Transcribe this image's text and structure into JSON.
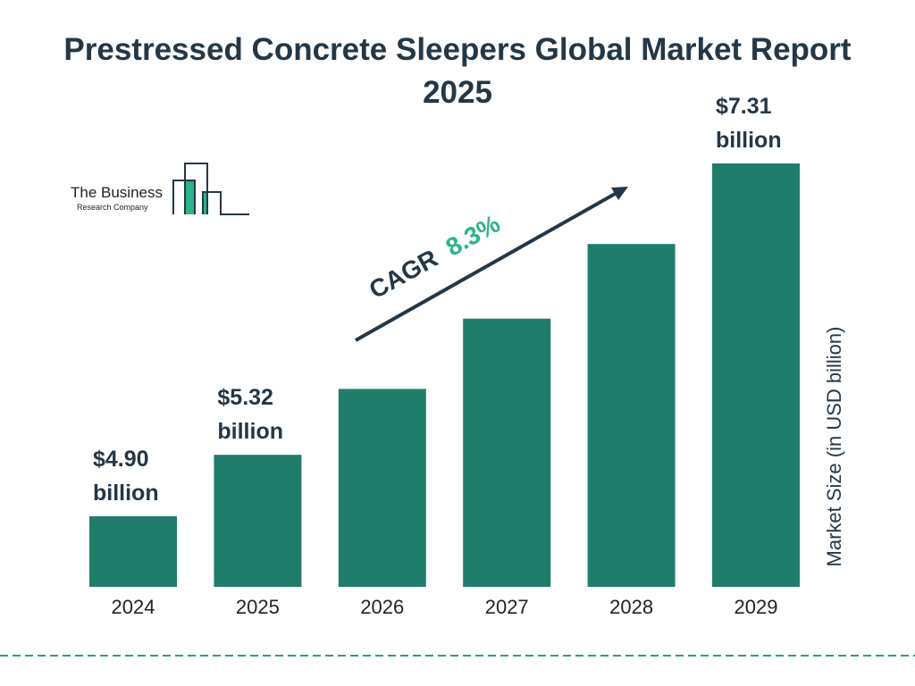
{
  "title": "Prestressed Concrete Sleepers Global Market Report 2025",
  "logo": {
    "line1": "The Business",
    "line2": "Research Company"
  },
  "colors": {
    "bar": "#217d6b",
    "text": "#243746",
    "accent": "#2bb389",
    "divider": "#2a9d8f"
  },
  "chart_data": {
    "type": "bar",
    "title": "Prestressed Concrete Sleepers Global Market Report 2025",
    "categories": [
      "2024",
      "2025",
      "2026",
      "2027",
      "2028",
      "2029"
    ],
    "values": [
      4.9,
      5.32,
      5.77,
      6.25,
      6.76,
      7.31
    ],
    "data_labels": [
      {
        "category": "2024",
        "line1": "$4.90",
        "line2": "billion"
      },
      {
        "category": "2025",
        "line1": "$5.32",
        "line2": "billion"
      },
      {
        "category": "2029",
        "line1": "$7.31",
        "line2": "billion"
      }
    ],
    "ylabel": "Market Size (in USD billion)",
    "xlabel": "",
    "annotation": {
      "label": "CAGR",
      "value": "8.3%"
    },
    "grid": false
  }
}
